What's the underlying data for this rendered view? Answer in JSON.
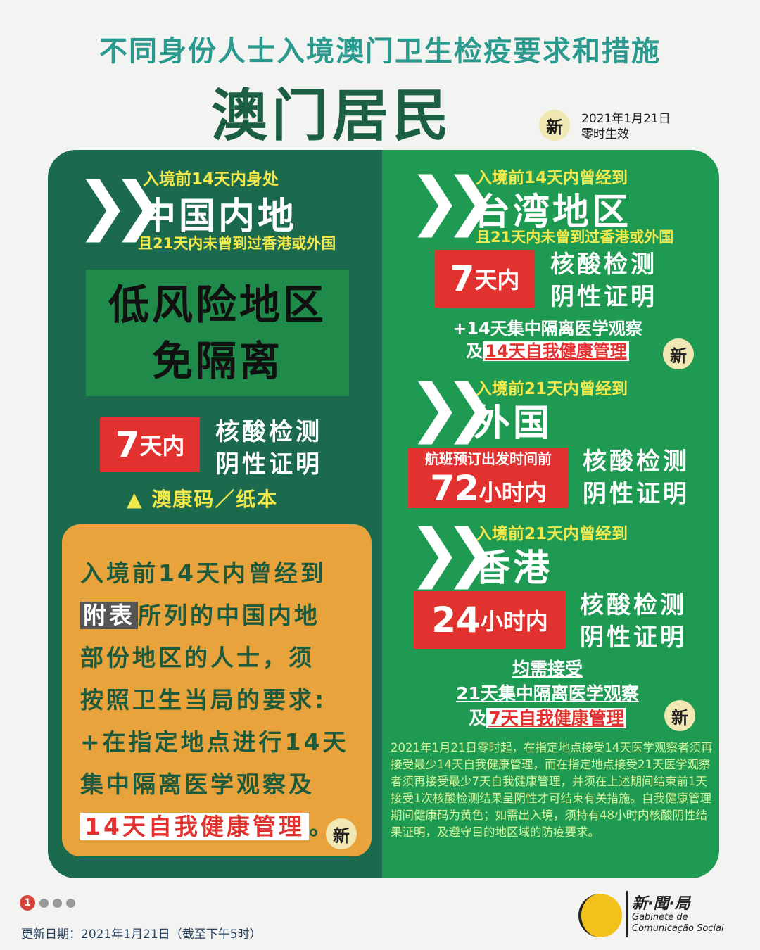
{
  "header": {
    "supertitle": "不同身份人士入境澳门卫生检疫要求和措施",
    "title": "澳门居民",
    "new_badge": "新",
    "effective_date": "2021年1月21日",
    "effective_time": "零时生效"
  },
  "mainland": {
    "pre": "入境前14天内身处",
    "region": "中国内地",
    "cond": "且21天内未曾到过香港或外国",
    "box_line1": "低风险地区",
    "box_line2": "免隔离",
    "test_num": "7",
    "test_unit": "天内",
    "test_l1": "核酸检测",
    "test_l2": "阴性证明",
    "code": "▲ 澳康码／纸本"
  },
  "orange": {
    "l1": "入境前14天内曾经到",
    "l2a": "附表",
    "l2b": "所列的中国内地",
    "l3": "部份地区的人士，须",
    "l4": "按照卫生当局的要求:",
    "l5": "+在指定地点进行14天",
    "l6": "集中隔离医学观察及",
    "l7": "14天自我健康管理",
    "l7end": "。",
    "new_badge": "新"
  },
  "taiwan": {
    "pre": "入境前14天内曾经到",
    "region": "台湾地区",
    "cond": "且21天内未曾到过香港或外国",
    "test_num": "7",
    "test_unit": "天内",
    "test_l1": "核酸检测",
    "test_l2": "阴性证明",
    "note1": "+14天集中隔离医学观察",
    "note2a": "及",
    "note2b": "14天自我健康管理",
    "new_badge": "新"
  },
  "foreign": {
    "pre": "入境前21天内曾经到",
    "region": "外国",
    "test_pre": "航班预订出发时间前",
    "test_num": "72",
    "test_unit": "小时内",
    "test_l1": "核酸检测",
    "test_l2": "阴性证明"
  },
  "hongkong": {
    "pre": "入境前21天内曾经到",
    "region": "香港",
    "test_num": "24",
    "test_unit": "小时内",
    "test_l1": "核酸检测",
    "test_l2": "阴性证明",
    "note1": "均需接受",
    "note2": "21天集中隔离医学观察",
    "note3a": "及",
    "note3b": "7天自我健康管理",
    "new_badge": "新"
  },
  "fine_print": "2021年1月21日零时起，在指定地点接受14天医学观察者须再接受最少14天自我健康管理，而在指定地点接受21天医学观察者须再接受最少7天自我健康管理，并须在上述期间结束前1天接受1次核酸检测结果呈阴性才可结束有关措施。自我健康管理期间健康码为黄色；如需出入境，须持有48小时内核酸阴性结果证明，及遵守目的地区域的防疫要求。",
  "footer": {
    "page": "1",
    "update": "更新日期：2021年1月21日（截至下午5时）",
    "logo_cn": "新·聞·局",
    "logo_pt1": "Gabinete de",
    "logo_pt2": "Comunicação Social",
    "logo_mark": "GCS"
  },
  "colors": {
    "dark_green": "#1c6a4d",
    "green": "#1f9a52",
    "red": "#e1322f",
    "orange": "#e9a33c",
    "yellow": "#f2e84c"
  }
}
